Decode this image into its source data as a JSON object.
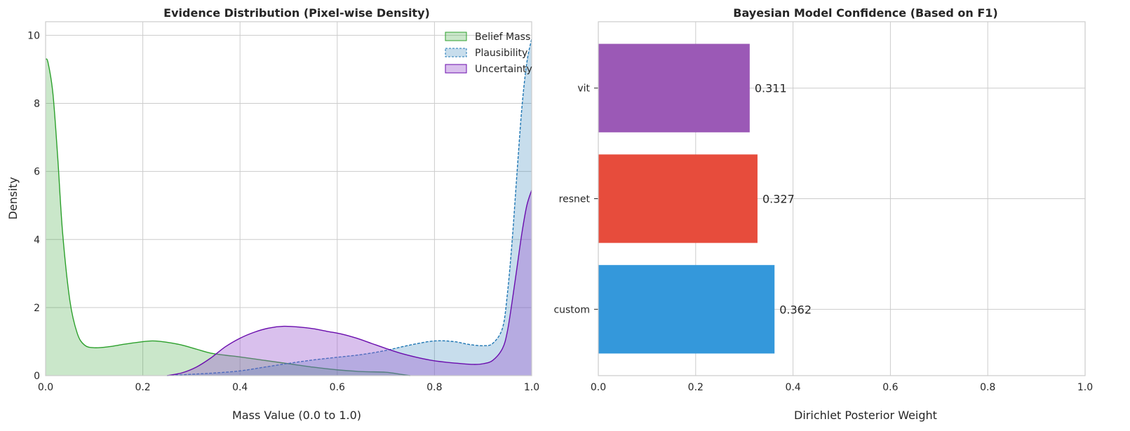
{
  "chart_data": [
    {
      "type": "area",
      "title": "Evidence Distribution (Pixel-wise Density)",
      "xlabel": "Mass Value (0.0 to 1.0)",
      "ylabel": "Density",
      "xlim": [
        0,
        1
      ],
      "ylim": [
        0,
        10.4
      ],
      "x_ticks": [
        "0.0",
        "0.2",
        "0.4",
        "0.6",
        "0.8",
        "1.0"
      ],
      "y_ticks": [
        "0",
        "2",
        "4",
        "6",
        "8",
        "10"
      ],
      "x_tick_values": [
        0,
        0.2,
        0.4,
        0.6,
        0.8,
        1.0
      ],
      "y_tick_values": [
        0,
        2,
        4,
        6,
        8,
        10
      ],
      "grid": true,
      "legend_position": "top-right",
      "series": [
        {
          "name": "Belief Mass",
          "line_color": "#2ca02c",
          "fill_color": "#2ca02c",
          "fill_opacity": 0.25,
          "dashed": false,
          "x": [
            0,
            0.005,
            0.015,
            0.025,
            0.035,
            0.05,
            0.065,
            0.08,
            0.1,
            0.13,
            0.16,
            0.19,
            0.22,
            0.25,
            0.28,
            0.31,
            0.34,
            0.37,
            0.4,
            0.45,
            0.5,
            0.55,
            0.6,
            0.65,
            0.7,
            0.73,
            0.75
          ],
          "y": [
            9.3,
            9.2,
            8.3,
            6.4,
            4.2,
            2.2,
            1.25,
            0.9,
            0.82,
            0.85,
            0.92,
            0.98,
            1.02,
            0.98,
            0.9,
            0.78,
            0.66,
            0.6,
            0.55,
            0.45,
            0.35,
            0.25,
            0.17,
            0.12,
            0.1,
            0.04,
            0.0
          ]
        },
        {
          "name": "Plausibility",
          "line_color": "#1f77b4",
          "fill_color": "#1f77b4",
          "fill_opacity": 0.25,
          "dashed": true,
          "x": [
            0.25,
            0.3,
            0.35,
            0.4,
            0.45,
            0.5,
            0.55,
            0.6,
            0.65,
            0.7,
            0.75,
            0.8,
            0.84,
            0.87,
            0.9,
            0.92,
            0.94,
            0.95,
            0.96,
            0.97,
            0.98,
            0.99,
            1.0
          ],
          "y": [
            0.0,
            0.04,
            0.08,
            0.14,
            0.25,
            0.36,
            0.46,
            0.54,
            0.62,
            0.74,
            0.9,
            1.02,
            1.0,
            0.92,
            0.88,
            0.95,
            1.4,
            2.4,
            4.0,
            6.0,
            7.9,
            9.2,
            9.9
          ]
        },
        {
          "name": "Uncertainty",
          "line_color": "#6a0dad",
          "fill_color": "#9b59d0",
          "fill_opacity": 0.38,
          "dashed": false,
          "x": [
            0.25,
            0.28,
            0.31,
            0.34,
            0.37,
            0.4,
            0.43,
            0.46,
            0.49,
            0.52,
            0.55,
            0.58,
            0.61,
            0.64,
            0.67,
            0.7,
            0.73,
            0.76,
            0.79,
            0.82,
            0.85,
            0.88,
            0.9,
            0.92,
            0.94,
            0.95,
            0.96,
            0.97,
            0.98,
            0.99,
            1.0
          ],
          "y": [
            0.0,
            0.08,
            0.25,
            0.52,
            0.85,
            1.1,
            1.28,
            1.4,
            1.45,
            1.43,
            1.38,
            1.3,
            1.22,
            1.1,
            0.95,
            0.8,
            0.66,
            0.55,
            0.46,
            0.4,
            0.36,
            0.33,
            0.35,
            0.45,
            0.8,
            1.3,
            2.2,
            3.2,
            4.2,
            5.0,
            5.45
          ]
        }
      ]
    },
    {
      "type": "bar",
      "orientation": "horizontal",
      "title": "Bayesian Model Confidence (Based on F1)",
      "xlabel": "Dirichlet Posterior Weight",
      "ylabel": "",
      "xlim": [
        0,
        1.0
      ],
      "x_ticks": [
        "0.0",
        "0.2",
        "0.4",
        "0.6",
        "0.8",
        "1.0"
      ],
      "x_tick_values": [
        0,
        0.2,
        0.4,
        0.6,
        0.8,
        1.0
      ],
      "grid": true,
      "categories": [
        "custom",
        "resnet",
        "vit"
      ],
      "values": [
        0.362,
        0.327,
        0.311
      ],
      "value_labels": [
        "0.362",
        "0.327",
        "0.311"
      ],
      "colors": [
        "#3498db",
        "#e74c3c",
        "#9b59b6"
      ]
    }
  ]
}
